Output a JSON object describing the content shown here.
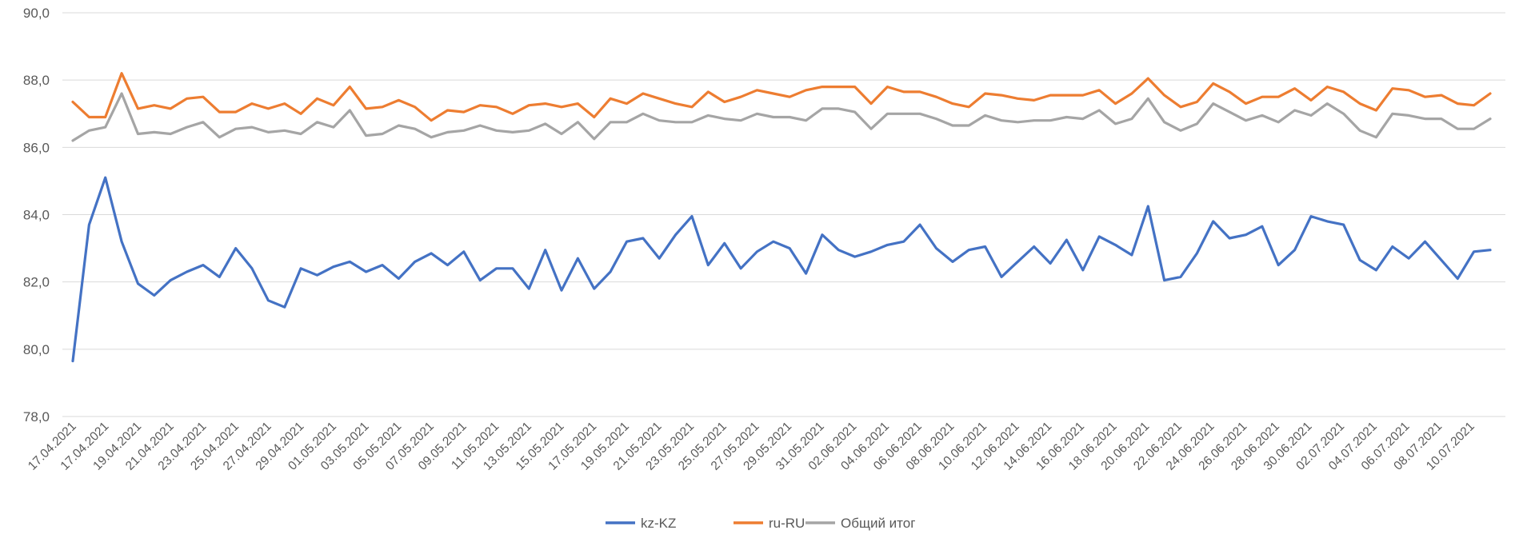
{
  "chart_data": {
    "type": "line",
    "title": "",
    "xlabel": "",
    "ylabel": "",
    "ylim": [
      78,
      90
    ],
    "y_ticks": [
      "78,0",
      "80,0",
      "82,0",
      "84,0",
      "86,0",
      "88,0",
      "90,0"
    ],
    "grid": "horizontal",
    "legend_position": "bottom",
    "x_tick_labels": [
      "17.04.2021",
      "17.04.2021",
      "19.04.2021",
      "21.04.2021",
      "23.04.2021",
      "25.04.2021",
      "27.04.2021",
      "29.04.2021",
      "01.05.2021",
      "03.05.2021",
      "05.05.2021",
      "07.05.2021",
      "09.05.2021",
      "11.05.2021",
      "13.05.2021",
      "15.05.2021",
      "17.05.2021",
      "19.05.2021",
      "21.05.2021",
      "23.05.2021",
      "25.05.2021",
      "27.05.2021",
      "29.05.2021",
      "31.05.2021",
      "02.06.2021",
      "04.06.2021",
      "06.06.2021",
      "08.06.2021",
      "10.06.2021",
      "12.06.2021",
      "14.06.2021",
      "16.06.2021",
      "18.06.2021",
      "20.06.2021",
      "22.06.2021",
      "24.06.2021",
      "26.06.2021",
      "28.06.2021",
      "30.06.2021",
      "02.07.2021",
      "04.07.2021",
      "06.07.2021",
      "08.07.2021",
      "10.07.2021"
    ],
    "series": [
      {
        "name": "kz-KZ",
        "color": "#4472C4",
        "values": [
          79.65,
          83.7,
          85.1,
          83.2,
          81.95,
          81.6,
          82.05,
          82.3,
          82.5,
          82.15,
          83.0,
          82.4,
          81.45,
          81.25,
          82.4,
          82.2,
          82.45,
          82.6,
          82.3,
          82.5,
          82.1,
          82.6,
          82.85,
          82.5,
          82.9,
          82.05,
          82.4,
          82.4,
          81.8,
          82.95,
          81.75,
          82.7,
          81.8,
          82.3,
          83.2,
          83.3,
          82.7,
          83.4,
          83.95,
          82.5,
          83.15,
          82.4,
          82.9,
          83.2,
          83.0,
          82.25,
          83.4,
          82.95,
          82.75,
          82.9,
          83.1,
          83.2,
          83.7,
          83.0,
          82.6,
          82.95,
          83.05,
          82.15,
          82.6,
          83.05,
          82.55,
          83.25,
          82.35,
          83.35,
          83.1,
          82.8,
          84.25,
          82.05,
          82.15,
          82.85,
          83.8,
          83.3,
          83.4,
          83.65,
          82.5,
          82.95,
          83.95,
          83.8,
          83.7,
          82.65,
          82.35,
          83.05,
          82.7,
          83.2,
          82.65,
          82.1,
          82.9,
          82.95
        ]
      },
      {
        "name": "ru-RU",
        "color": "#ED7D31",
        "values": [
          87.35,
          86.9,
          86.9,
          88.2,
          87.15,
          87.25,
          87.15,
          87.45,
          87.5,
          87.05,
          87.05,
          87.3,
          87.15,
          87.3,
          87.0,
          87.45,
          87.25,
          87.8,
          87.15,
          87.2,
          87.4,
          87.2,
          86.8,
          87.1,
          87.05,
          87.25,
          87.2,
          87.0,
          87.25,
          87.3,
          87.2,
          87.3,
          86.9,
          87.45,
          87.3,
          87.6,
          87.45,
          87.3,
          87.2,
          87.65,
          87.35,
          87.5,
          87.7,
          87.6,
          87.5,
          87.7,
          87.8,
          87.8,
          87.8,
          87.3,
          87.8,
          87.65,
          87.65,
          87.5,
          87.3,
          87.2,
          87.6,
          87.55,
          87.45,
          87.4,
          87.55,
          87.55,
          87.55,
          87.7,
          87.3,
          87.6,
          88.05,
          87.55,
          87.2,
          87.35,
          87.9,
          87.65,
          87.3,
          87.5,
          87.5,
          87.75,
          87.4,
          87.8,
          87.65,
          87.3,
          87.1,
          87.75,
          87.7,
          87.5,
          87.55,
          87.3,
          87.25,
          87.6
        ]
      },
      {
        "name": "Общий итог",
        "color": "#A5A5A5",
        "values": [
          86.2,
          86.5,
          86.6,
          87.6,
          86.4,
          86.45,
          86.4,
          86.6,
          86.75,
          86.3,
          86.55,
          86.6,
          86.45,
          86.5,
          86.4,
          86.75,
          86.6,
          87.1,
          86.35,
          86.4,
          86.65,
          86.55,
          86.3,
          86.45,
          86.5,
          86.65,
          86.5,
          86.45,
          86.5,
          86.7,
          86.4,
          86.75,
          86.25,
          86.75,
          86.75,
          87.0,
          86.8,
          86.75,
          86.75,
          86.95,
          86.85,
          86.8,
          87.0,
          86.9,
          86.9,
          86.8,
          87.15,
          87.15,
          87.05,
          86.55,
          87.0,
          87.0,
          87.0,
          86.85,
          86.65,
          86.65,
          86.95,
          86.8,
          86.75,
          86.8,
          86.8,
          86.9,
          86.85,
          87.1,
          86.7,
          86.85,
          87.45,
          86.75,
          86.5,
          86.7,
          87.3,
          87.05,
          86.8,
          86.95,
          86.75,
          87.1,
          86.95,
          87.3,
          87.0,
          86.5,
          86.3,
          87.0,
          86.95,
          86.85,
          86.85,
          86.55,
          86.55,
          86.85
        ]
      }
    ]
  }
}
